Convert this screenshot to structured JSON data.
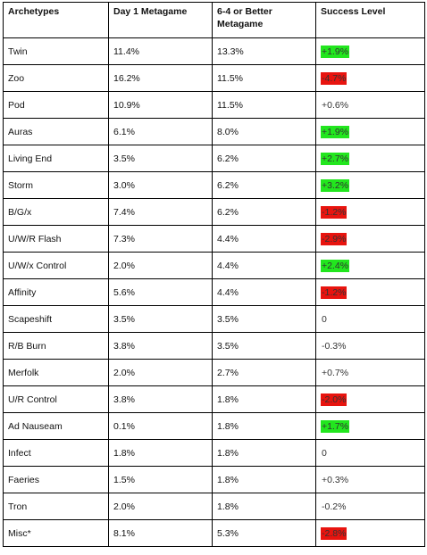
{
  "columns": [
    "Archetypes",
    "Day 1 Metagame",
    "6-4 or Better Metagame",
    "Success Level"
  ],
  "rows": [
    {
      "archetype": "Twin",
      "day1": "11.4%",
      "better": "13.3%",
      "success": "+1.9%",
      "status": "pos"
    },
    {
      "archetype": "Zoo",
      "day1": "16.2%",
      "better": "11.5%",
      "success": "-4.7%",
      "status": "neg"
    },
    {
      "archetype": "Pod",
      "day1": "10.9%",
      "better": "11.5%",
      "success": "+0.6%",
      "status": "none"
    },
    {
      "archetype": "Auras",
      "day1": "6.1%",
      "better": "8.0%",
      "success": "+1.9%",
      "status": "pos"
    },
    {
      "archetype": "Living End",
      "day1": "3.5%",
      "better": "6.2%",
      "success": "+2.7%",
      "status": "pos"
    },
    {
      "archetype": "Storm",
      "day1": "3.0%",
      "better": "6.2%",
      "success": "+3.2%",
      "status": "pos"
    },
    {
      "archetype": "B/G/x",
      "day1": "7.4%",
      "better": "6.2%",
      "success": "-1.2%",
      "status": "neg"
    },
    {
      "archetype": "U/W/R Flash",
      "day1": "7.3%",
      "better": "4.4%",
      "success": "-2.9%",
      "status": "neg"
    },
    {
      "archetype": "U/W/x Control",
      "day1": "2.0%",
      "better": "4.4%",
      "success": "+2.4%",
      "status": "pos"
    },
    {
      "archetype": "Affinity",
      "day1": "5.6%",
      "better": "4.4%",
      "success": "-1.2%",
      "status": "neg"
    },
    {
      "archetype": "Scapeshift",
      "day1": "3.5%",
      "better": "3.5%",
      "success": "0",
      "status": "none"
    },
    {
      "archetype": "R/B Burn",
      "day1": "3.8%",
      "better": "3.5%",
      "success": "-0.3%",
      "status": "none"
    },
    {
      "archetype": "Merfolk",
      "day1": "2.0%",
      "better": "2.7%",
      "success": "+0.7%",
      "status": "none"
    },
    {
      "archetype": "U/R Control",
      "day1": "3.8%",
      "better": "1.8%",
      "success": "-2.0%",
      "status": "neg"
    },
    {
      "archetype": "Ad Nauseam",
      "day1": "0.1%",
      "better": "1.8%",
      "success": "+1.7%",
      "status": "pos"
    },
    {
      "archetype": "Infect",
      "day1": "1.8%",
      "better": "1.8%",
      "success": "0",
      "status": "none"
    },
    {
      "archetype": "Faeries",
      "day1": "1.5%",
      "better": "1.8%",
      "success": "+0.3%",
      "status": "none"
    },
    {
      "archetype": "Tron",
      "day1": "2.0%",
      "better": "1.8%",
      "success": "-0.2%",
      "status": "none"
    },
    {
      "archetype": "Misc*",
      "day1": "8.1%",
      "better": "5.3%",
      "success": "-2.8%",
      "status": "neg"
    }
  ],
  "colors": {
    "positive_highlight": "#22e61e",
    "negative_highlight": "#e8140f",
    "grid": "#000000"
  }
}
